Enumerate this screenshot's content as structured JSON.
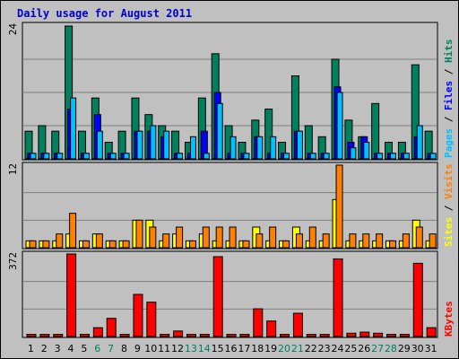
{
  "title": "Daily usage for August 2011",
  "colors": {
    "hits": "#00805c",
    "files": "#0000ff",
    "pages": "#00c0ff",
    "visits": "#ff8000",
    "sites": "#ffff00",
    "kbytes": "#ff0000",
    "title": "#0000cc",
    "background": "#c0c0c0"
  },
  "labels": {
    "pages": "Pages",
    "files": "Files",
    "hits": "Hits",
    "sites": "Sites",
    "visits": "Visits",
    "kbytes": "KBytes",
    "sep": " / "
  },
  "chart_data": {
    "type": "bar",
    "categories": [
      "1",
      "2",
      "3",
      "4",
      "5",
      "6",
      "7",
      "8",
      "9",
      "10",
      "11",
      "12",
      "13",
      "14",
      "15",
      "16",
      "17",
      "18",
      "19",
      "20",
      "21",
      "22",
      "23",
      "24",
      "25",
      "26",
      "27",
      "28",
      "29",
      "30",
      "31"
    ],
    "weekend_days": [
      6,
      7,
      13,
      14,
      20,
      21,
      27,
      28
    ],
    "panels": [
      {
        "name": "hits-files-pages",
        "max_label": "24",
        "max": 24,
        "series": [
          {
            "name": "Hits",
            "values": [
              5,
              6,
              5,
              24,
              5,
              11,
              3,
              5,
              11,
              8,
              6,
              5,
              3,
              11,
              19,
              6,
              3,
              7,
              9,
              3,
              15,
              6,
              4,
              18,
              7,
              4,
              10,
              3,
              3,
              17,
              5
            ]
          },
          {
            "name": "Files",
            "values": [
              1,
              1,
              1,
              9,
              1,
              8,
              1,
              1,
              5,
              5,
              4,
              1,
              1,
              5,
              12,
              1,
              1,
              4,
              1,
              1,
              5,
              1,
              1,
              13,
              3,
              4,
              1,
              1,
              1,
              4,
              1
            ]
          },
          {
            "name": "Pages",
            "values": [
              1,
              1,
              1,
              11,
              1,
              5,
              1,
              1,
              5,
              6,
              5,
              1,
              4,
              1,
              10,
              4,
              1,
              4,
              4,
              1,
              5,
              1,
              1,
              12,
              2,
              3,
              1,
              1,
              1,
              6,
              1
            ]
          }
        ]
      },
      {
        "name": "visits-sites",
        "max_label": "12",
        "max": 12,
        "series": [
          {
            "name": "Visits",
            "values": [
              1,
              1,
              2,
              5,
              1,
              2,
              1,
              1,
              4,
              3,
              2,
              3,
              1,
              3,
              3,
              3,
              1,
              2,
              3,
              1,
              2,
              3,
              2,
              12,
              2,
              2,
              2,
              1,
              2,
              3,
              2
            ]
          },
          {
            "name": "Sites",
            "values": [
              1,
              1,
              1,
              2,
              1,
              2,
              1,
              1,
              4,
              4,
              1,
              2,
              1,
              2,
              1,
              1,
              1,
              3,
              1,
              1,
              3,
              1,
              1,
              7,
              1,
              1,
              1,
              1,
              1,
              4,
              1
            ]
          }
        ]
      },
      {
        "name": "kbytes",
        "max_label": "372",
        "max": 372,
        "series": [
          {
            "name": "KBytes",
            "values": [
              10,
              10,
              10,
              372,
              10,
              40,
              82,
              10,
              190,
              155,
              10,
              25,
              10,
              10,
              360,
              10,
              10,
              125,
              70,
              10,
              105,
              10,
              10,
              350,
              15,
              20,
              15,
              10,
              10,
              330,
              40
            ]
          }
        ]
      }
    ]
  }
}
